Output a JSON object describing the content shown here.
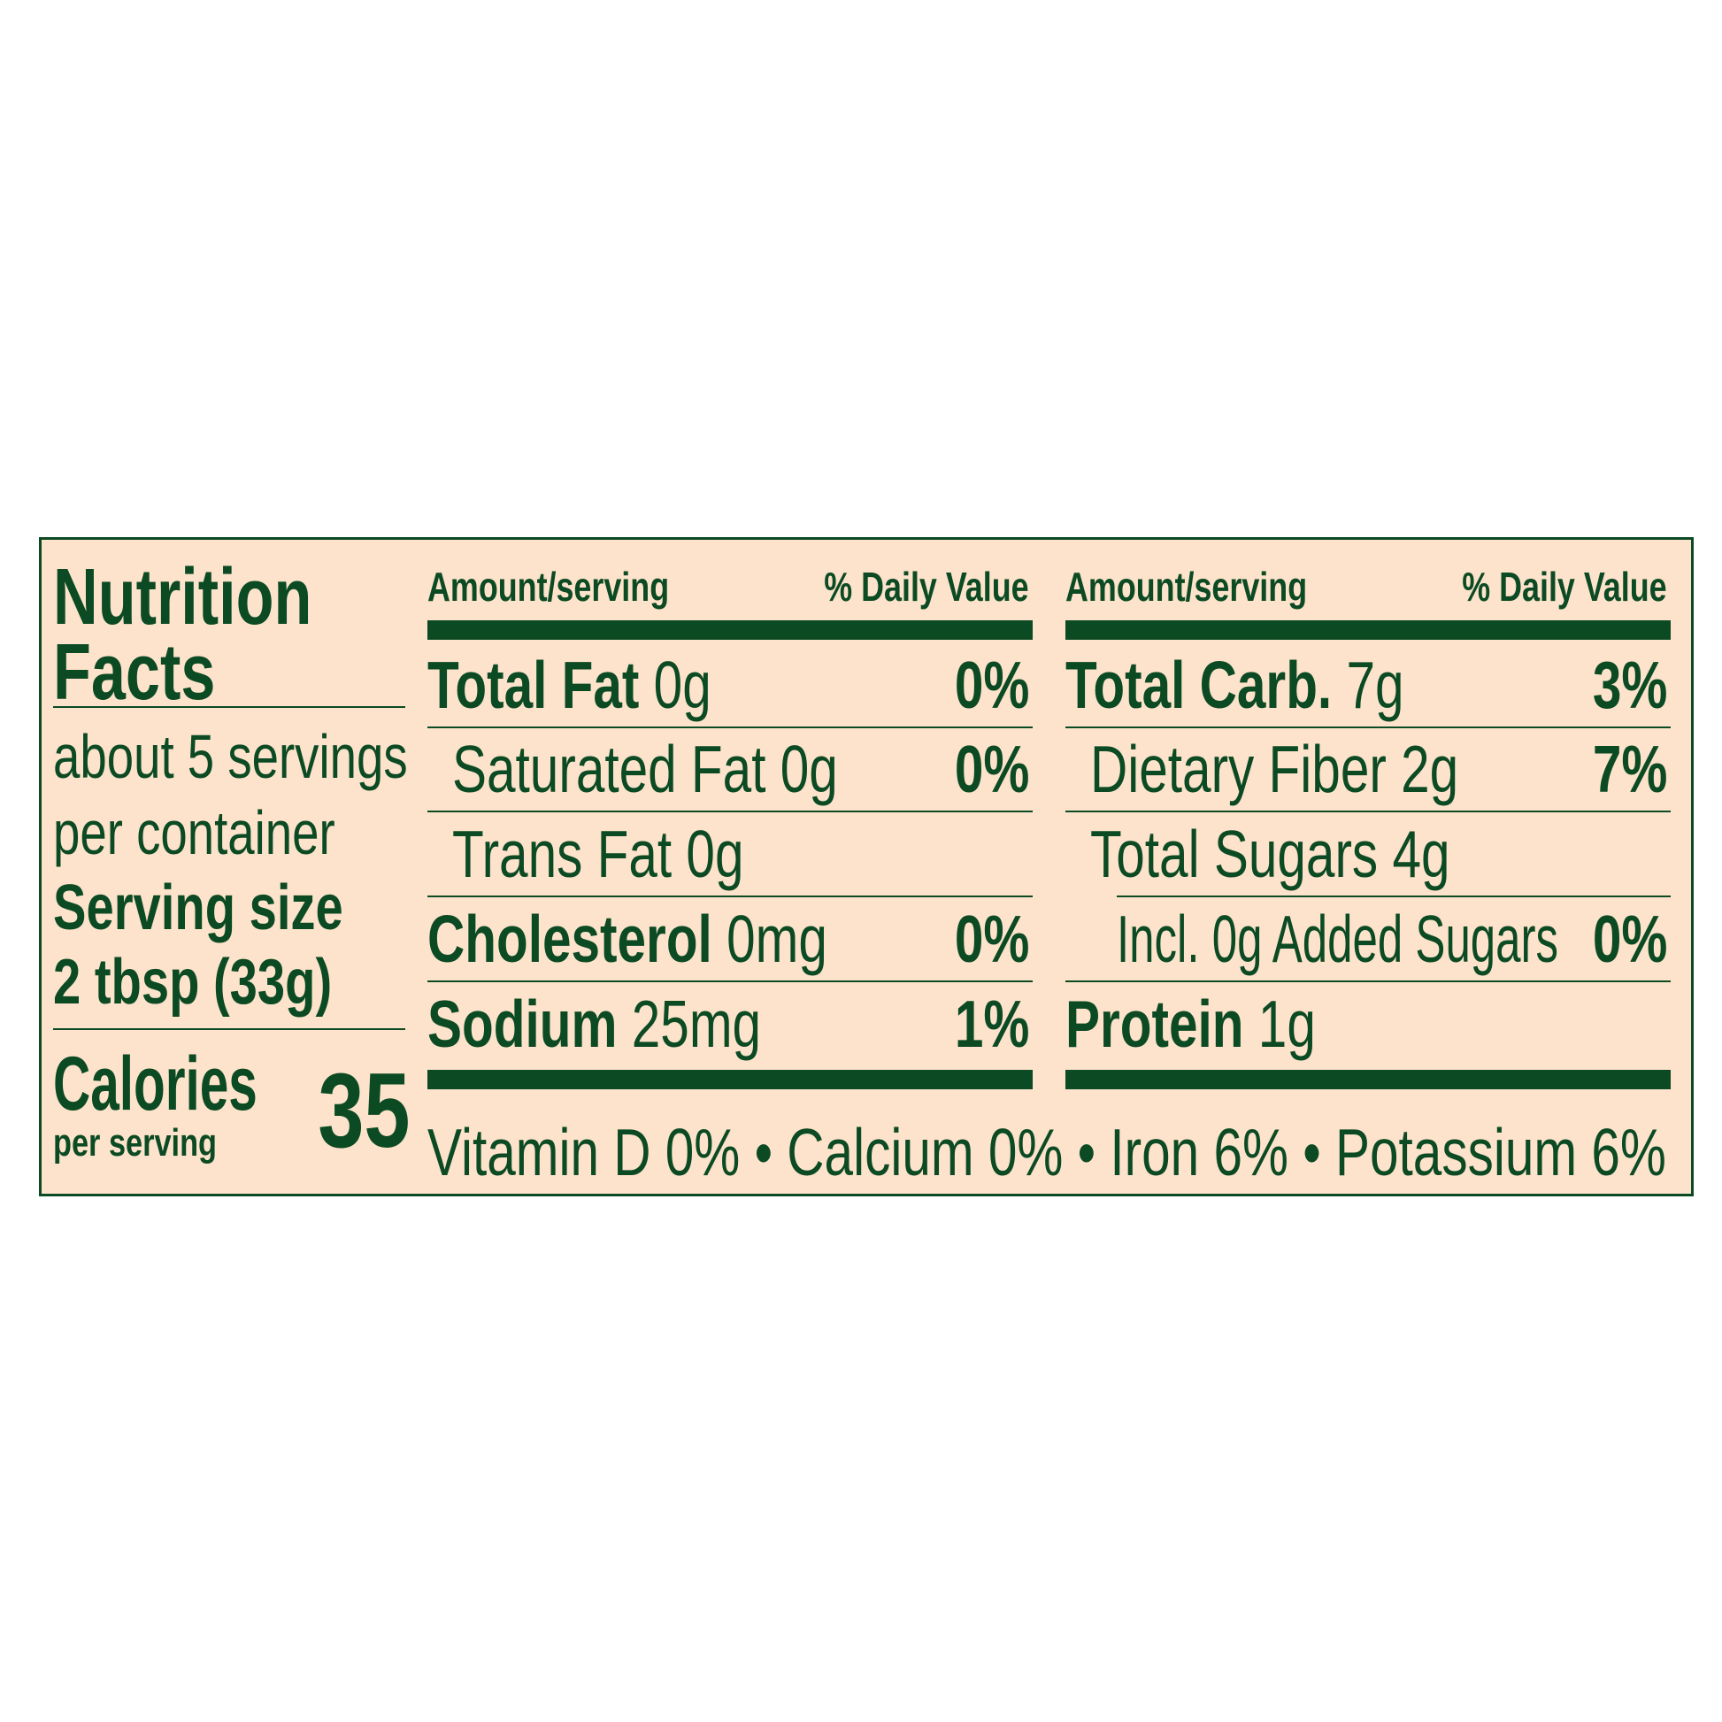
{
  "left": {
    "title_line1": "Nutrition",
    "title_line2": "Facts",
    "servings_line1": "about 5 servings",
    "servings_line2": "per container",
    "serving_size_label": "Serving size",
    "serving_size_value": "2 tbsp (33g)",
    "calories_label": "Calories",
    "calories_sub": "per serving",
    "calories_value": "35"
  },
  "columns": [
    {
      "header_amount": "Amount/serving",
      "header_dv": "% Daily Value",
      "rows": [
        {
          "name": "Total Fat",
          "amount": "0g",
          "dv": "0%",
          "bold": true,
          "indent": 0
        },
        {
          "name": "Saturated Fat",
          "amount": "0g",
          "dv": "0%",
          "bold": false,
          "indent": 1
        },
        {
          "name": "Trans Fat",
          "amount": "0g",
          "dv": "",
          "bold": false,
          "indent": 1
        },
        {
          "name": "Cholesterol",
          "amount": "0mg",
          "dv": "0%",
          "bold": true,
          "indent": 0
        },
        {
          "name": "Sodium",
          "amount": "25mg",
          "dv": "1%",
          "bold": true,
          "indent": 0
        }
      ]
    },
    {
      "header_amount": "Amount/serving",
      "header_dv": "% Daily Value",
      "rows": [
        {
          "name": "Total Carb.",
          "amount": "7g",
          "dv": "3%",
          "bold": true,
          "indent": 0
        },
        {
          "name": "Dietary Fiber",
          "amount": "2g",
          "dv": "7%",
          "bold": false,
          "indent": 1
        },
        {
          "name": "Total Sugars",
          "amount": "4g",
          "dv": "",
          "bold": false,
          "indent": 1
        },
        {
          "name": "Incl. 0g Added Sugars",
          "amount": "",
          "dv": "0%",
          "bold": false,
          "indent": 2
        },
        {
          "name": "Protein",
          "amount": "1g",
          "dv": "",
          "bold": true,
          "indent": 0
        }
      ]
    }
  ],
  "footer": "Vitamin D 0% • Calcium 0% • Iron 6% • Potassium 6%",
  "colors": {
    "background": "#fde3cb",
    "ink": "#0b4a23"
  }
}
